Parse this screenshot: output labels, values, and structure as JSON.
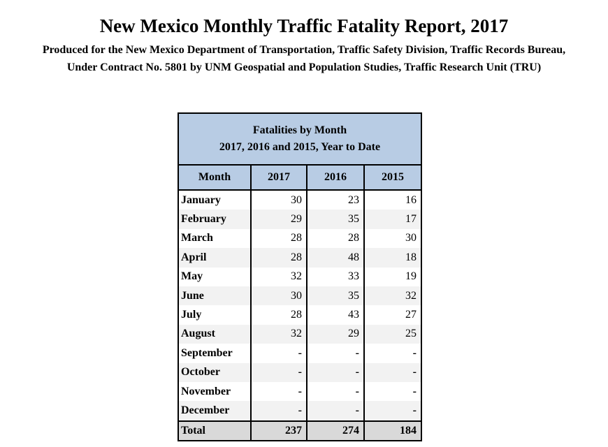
{
  "header": {
    "title": "New Mexico Monthly Traffic Fatality Report, 2017",
    "subtitle_line1": "Produced for the New Mexico Department of Transportation, Traffic Safety Division, Traffic Records Bureau,",
    "subtitle_line2": "Under Contract No. 5801 by UNM Geospatial and Population Studies, Traffic Research Unit (TRU)"
  },
  "table": {
    "caption_line1": "Fatalities by Month",
    "caption_line2": "2017, 2016 and 2015, Year to Date",
    "columns": [
      "Month",
      "2017",
      "2016",
      "2015"
    ],
    "rows": [
      [
        "January",
        "30",
        "23",
        "16"
      ],
      [
        "February",
        "29",
        "35",
        "17"
      ],
      [
        "March",
        "28",
        "28",
        "30"
      ],
      [
        "April",
        "28",
        "48",
        "18"
      ],
      [
        "May",
        "32",
        "33",
        "19"
      ],
      [
        "June",
        "30",
        "35",
        "32"
      ],
      [
        "July",
        "28",
        "43",
        "27"
      ],
      [
        "August",
        "32",
        "29",
        "25"
      ],
      [
        "September",
        "-",
        "-",
        "-"
      ],
      [
        "October",
        "-",
        "-",
        "-"
      ],
      [
        "November",
        "-",
        "-",
        "-"
      ],
      [
        "December",
        "-",
        "-",
        "-"
      ]
    ],
    "total": [
      "Total",
      "237",
      "274",
      "184"
    ]
  },
  "colors": {
    "header_bg": "#b8cce4",
    "stripe_bg": "#f2f2f2",
    "total_bg": "#d9d9d9"
  }
}
